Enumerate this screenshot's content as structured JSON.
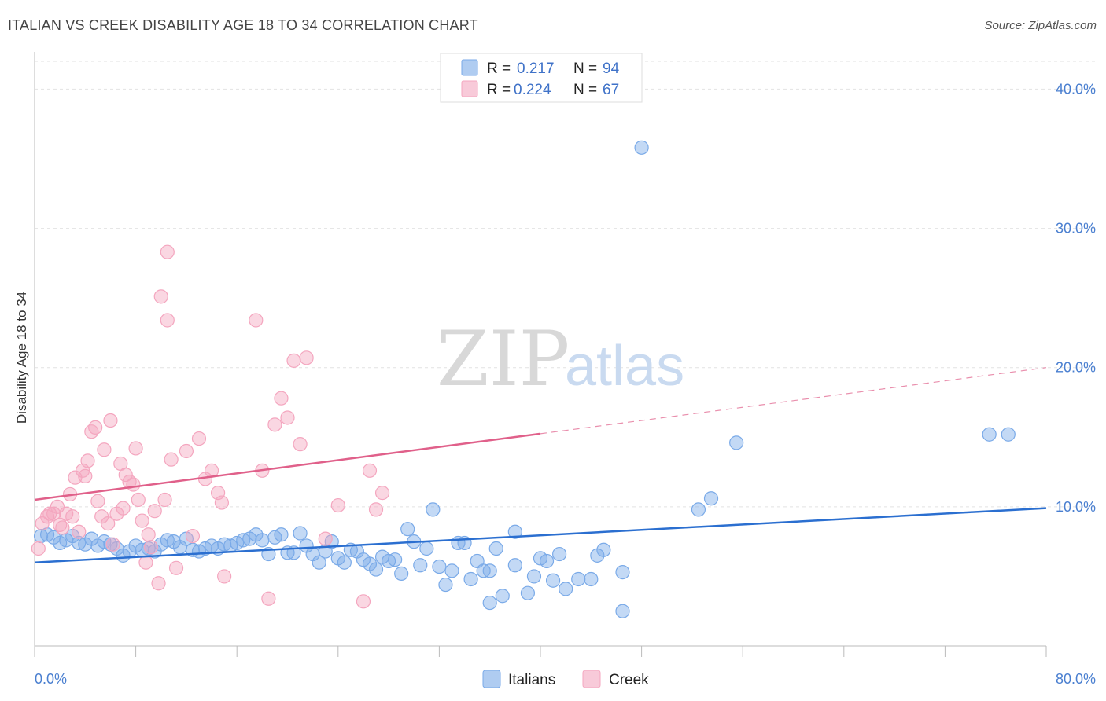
{
  "title": "ITALIAN VS CREEK DISABILITY AGE 18 TO 34 CORRELATION CHART",
  "source": "Source: ZipAtlas.com",
  "watermark": {
    "zip": "ZIP",
    "atlas": "atlas"
  },
  "chart_data": {
    "type": "scatter",
    "ylabel": "Disability Age 18 to 34",
    "xlim": [
      0,
      80
    ],
    "ylim": [
      0,
      42
    ],
    "x_tick_labels": [
      "0.0%",
      "80.0%"
    ],
    "y_ticks": [
      10,
      20,
      30,
      40
    ],
    "y_tick_labels": [
      "10.0%",
      "20.0%",
      "30.0%",
      "40.0%"
    ],
    "grid": "horizontal dashed",
    "legend_top": [
      {
        "r_label": "R =",
        "r": "0.217",
        "n_label": "N =",
        "n": "94",
        "color": "#7aaae8"
      },
      {
        "r_label": "R =",
        "r": "0.224",
        "n_label": "N =",
        "n": "67",
        "color": "#f4a6bf"
      }
    ],
    "series": [
      {
        "name": "Italians",
        "color": "#7aaae8",
        "line_color": "#2b6fd0",
        "trend": {
          "x0": 0,
          "y0": 6.0,
          "x1": 80,
          "y1": 9.9,
          "solid_to": 80
        },
        "points": [
          [
            0.5,
            7.9
          ],
          [
            1.0,
            8.0
          ],
          [
            1.5,
            7.8
          ],
          [
            2.0,
            7.4
          ],
          [
            2.5,
            7.6
          ],
          [
            3.0,
            7.9
          ],
          [
            3.5,
            7.4
          ],
          [
            4.0,
            7.3
          ],
          [
            4.5,
            7.7
          ],
          [
            5.0,
            7.2
          ],
          [
            5.5,
            7.5
          ],
          [
            6.0,
            7.3
          ],
          [
            6.5,
            7.0
          ],
          [
            7.0,
            6.5
          ],
          [
            7.5,
            6.8
          ],
          [
            8.0,
            7.2
          ],
          [
            8.5,
            6.9
          ],
          [
            9.0,
            7.0
          ],
          [
            9.5,
            6.8
          ],
          [
            10.0,
            7.3
          ],
          [
            10.5,
            7.6
          ],
          [
            11.0,
            7.5
          ],
          [
            11.5,
            7.1
          ],
          [
            12.0,
            7.7
          ],
          [
            12.5,
            6.9
          ],
          [
            13.0,
            6.8
          ],
          [
            13.5,
            7.0
          ],
          [
            14.0,
            7.2
          ],
          [
            14.5,
            7.0
          ],
          [
            15.0,
            7.3
          ],
          [
            15.5,
            7.2
          ],
          [
            16.0,
            7.4
          ],
          [
            16.5,
            7.6
          ],
          [
            17.0,
            7.7
          ],
          [
            17.5,
            8.0
          ],
          [
            18.0,
            7.6
          ],
          [
            18.5,
            6.6
          ],
          [
            19.0,
            7.8
          ],
          [
            19.5,
            8.0
          ],
          [
            20.0,
            6.7
          ],
          [
            20.5,
            6.7
          ],
          [
            21.0,
            8.1
          ],
          [
            21.5,
            7.2
          ],
          [
            22.0,
            6.6
          ],
          [
            22.5,
            6.0
          ],
          [
            23.0,
            6.8
          ],
          [
            23.5,
            7.5
          ],
          [
            24.0,
            6.3
          ],
          [
            24.5,
            6.0
          ],
          [
            25.0,
            6.9
          ],
          [
            25.5,
            6.8
          ],
          [
            26.0,
            6.2
          ],
          [
            26.5,
            5.9
          ],
          [
            27.0,
            5.5
          ],
          [
            27.5,
            6.4
          ],
          [
            28.0,
            6.1
          ],
          [
            28.5,
            6.2
          ],
          [
            29.0,
            5.2
          ],
          [
            29.5,
            8.4
          ],
          [
            30.0,
            7.5
          ],
          [
            30.5,
            5.8
          ],
          [
            31.0,
            7.0
          ],
          [
            31.5,
            9.8
          ],
          [
            32.0,
            5.7
          ],
          [
            32.5,
            4.4
          ],
          [
            33.0,
            5.4
          ],
          [
            33.5,
            7.4
          ],
          [
            34.0,
            7.4
          ],
          [
            34.5,
            4.8
          ],
          [
            35.0,
            6.1
          ],
          [
            35.5,
            5.4
          ],
          [
            36.0,
            5.4
          ],
          [
            36.5,
            7.0
          ],
          [
            36.0,
            3.1
          ],
          [
            37.0,
            3.6
          ],
          [
            38.0,
            5.8
          ],
          [
            38.0,
            8.2
          ],
          [
            39.0,
            3.8
          ],
          [
            39.5,
            5.0
          ],
          [
            40.0,
            6.3
          ],
          [
            40.5,
            6.1
          ],
          [
            41.0,
            4.7
          ],
          [
            41.5,
            6.6
          ],
          [
            42.0,
            4.1
          ],
          [
            43.0,
            4.8
          ],
          [
            44.0,
            4.8
          ],
          [
            44.5,
            6.5
          ],
          [
            45.0,
            6.9
          ],
          [
            46.5,
            5.3
          ],
          [
            46.5,
            2.5
          ],
          [
            48.0,
            35.8
          ],
          [
            52.5,
            9.8
          ],
          [
            53.5,
            10.6
          ],
          [
            55.5,
            14.6
          ],
          [
            75.5,
            15.2
          ],
          [
            77.0,
            15.2
          ]
        ]
      },
      {
        "name": "Creek",
        "color": "#f4a6bf",
        "line_color": "#e0608a",
        "trend": {
          "x0": 0,
          "y0": 10.5,
          "x1": 80,
          "y1": 20.0,
          "solid_to": 40
        },
        "points": [
          [
            0.3,
            7.0
          ],
          [
            0.6,
            8.8
          ],
          [
            1.0,
            9.3
          ],
          [
            1.2,
            9.5
          ],
          [
            1.5,
            9.5
          ],
          [
            1.8,
            10.0
          ],
          [
            2.0,
            8.7
          ],
          [
            2.2,
            8.5
          ],
          [
            2.5,
            9.5
          ],
          [
            2.8,
            10.9
          ],
          [
            3.0,
            9.3
          ],
          [
            3.2,
            12.1
          ],
          [
            3.5,
            8.2
          ],
          [
            3.8,
            12.6
          ],
          [
            4.0,
            12.2
          ],
          [
            4.2,
            13.3
          ],
          [
            4.5,
            15.4
          ],
          [
            4.8,
            15.7
          ],
          [
            5.0,
            10.4
          ],
          [
            5.3,
            9.3
          ],
          [
            5.5,
            14.1
          ],
          [
            5.8,
            8.8
          ],
          [
            6.0,
            16.2
          ],
          [
            6.2,
            7.3
          ],
          [
            6.5,
            9.5
          ],
          [
            6.8,
            13.1
          ],
          [
            7.0,
            9.9
          ],
          [
            7.2,
            12.3
          ],
          [
            7.5,
            11.8
          ],
          [
            7.8,
            11.6
          ],
          [
            8.0,
            14.2
          ],
          [
            8.2,
            10.5
          ],
          [
            8.5,
            9.0
          ],
          [
            8.8,
            6.0
          ],
          [
            9.0,
            8.0
          ],
          [
            9.2,
            7.1
          ],
          [
            9.5,
            9.7
          ],
          [
            9.8,
            4.5
          ],
          [
            10.0,
            25.1
          ],
          [
            10.3,
            10.5
          ],
          [
            10.5,
            28.3
          ],
          [
            10.5,
            23.4
          ],
          [
            10.8,
            13.4
          ],
          [
            11.2,
            5.6
          ],
          [
            12.0,
            14.0
          ],
          [
            12.5,
            7.9
          ],
          [
            13.0,
            14.9
          ],
          [
            13.5,
            12.0
          ],
          [
            14.0,
            12.6
          ],
          [
            14.5,
            11.0
          ],
          [
            14.8,
            10.3
          ],
          [
            15.0,
            5.0
          ],
          [
            17.5,
            23.4
          ],
          [
            18.0,
            12.6
          ],
          [
            18.5,
            3.4
          ],
          [
            19.0,
            15.9
          ],
          [
            19.5,
            17.8
          ],
          [
            20.0,
            16.4
          ],
          [
            20.5,
            20.5
          ],
          [
            21.0,
            14.5
          ],
          [
            21.5,
            20.7
          ],
          [
            23.0,
            7.7
          ],
          [
            24.0,
            10.1
          ],
          [
            26.5,
            12.6
          ],
          [
            27.5,
            11.0
          ],
          [
            26.0,
            3.2
          ],
          [
            27.0,
            9.8
          ]
        ]
      }
    ]
  },
  "bottom_legend": [
    {
      "label": "Italians",
      "color": "#7aaae8"
    },
    {
      "label": "Creek",
      "color": "#f4a6bf"
    }
  ]
}
